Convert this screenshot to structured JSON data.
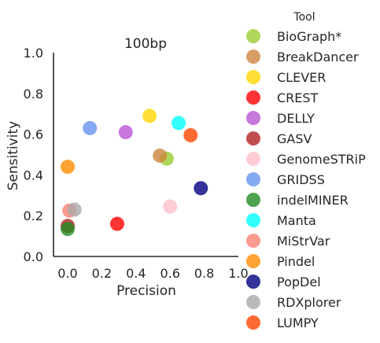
{
  "chart_data": {
    "type": "scatter",
    "title": "100bp",
    "xlabel": "Precision",
    "ylabel": "Sensitivity",
    "xlim": [
      -0.05,
      1.0
    ],
    "ylim": [
      0.0,
      1.0
    ],
    "xticks": [
      "0.0",
      "0.2",
      "0.4",
      "0.6",
      "0.8",
      "1.0"
    ],
    "yticks": [
      "0.0",
      "0.2",
      "0.4",
      "0.6",
      "0.8",
      "1.0"
    ],
    "grid": false,
    "legend_title": "Tool",
    "legend_position": "right",
    "series": [
      {
        "name": "BioGraph*",
        "color": "#9acd32",
        "points": [
          [
            0.58,
            0.48
          ]
        ]
      },
      {
        "name": "BreakDancer",
        "color": "#cd853f",
        "points": [
          [
            0.54,
            0.495
          ]
        ]
      },
      {
        "name": "CLEVER",
        "color": "#ffd700",
        "points": [
          [
            0.48,
            0.69
          ]
        ]
      },
      {
        "name": "CREST",
        "color": "#ff0000",
        "points": [
          [
            0.29,
            0.16
          ]
        ]
      },
      {
        "name": "DELLY",
        "color": "#ba55d3",
        "points": [
          [
            0.34,
            0.61
          ]
        ]
      },
      {
        "name": "GASV",
        "color": "#b22222",
        "points": [
          [
            0.0,
            0.15
          ]
        ]
      },
      {
        "name": "GenomeSTRiP",
        "color": "#ffc0cb",
        "points": [
          [
            0.6,
            0.245
          ]
        ]
      },
      {
        "name": "GRIDSS",
        "color": "#6495ed",
        "points": [
          [
            0.13,
            0.63
          ]
        ]
      },
      {
        "name": "indelMINER",
        "color": "#228b22",
        "points": [
          [
            0.0,
            0.135
          ]
        ]
      },
      {
        "name": "Manta",
        "color": "#00ffff",
        "points": [
          [
            0.65,
            0.655
          ]
        ]
      },
      {
        "name": "MiStrVar",
        "color": "#fa8072",
        "points": [
          [
            0.01,
            0.225
          ]
        ]
      },
      {
        "name": "Pindel",
        "color": "#ff8c00",
        "points": [
          [
            0.0,
            0.44
          ]
        ]
      },
      {
        "name": "PopDel",
        "color": "#000080",
        "points": [
          [
            0.78,
            0.335
          ]
        ]
      },
      {
        "name": "RDXplorer",
        "color": "#a9a9a9",
        "points": [
          [
            0.04,
            0.23
          ]
        ]
      },
      {
        "name": "LUMPY",
        "color": "#ff4500",
        "points": [
          [
            0.72,
            0.595
          ]
        ]
      }
    ]
  }
}
